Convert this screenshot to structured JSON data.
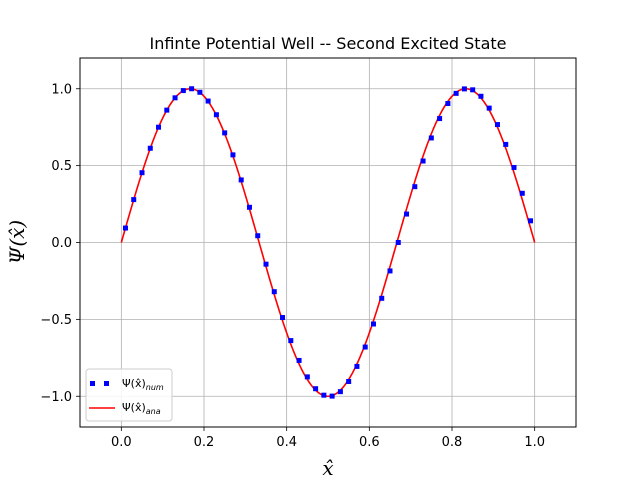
{
  "chart_data": {
    "type": "line",
    "title": "Infinte Potential Well -- Second Excited State",
    "xlabel": "x̂",
    "ylabel": "Ψ(x̂)",
    "xlim": [
      -0.1,
      1.1
    ],
    "ylim": [
      -1.2,
      1.2
    ],
    "xticks": [
      0.0,
      0.2,
      0.4,
      0.6,
      0.8,
      1.0
    ],
    "xtick_labels": [
      "0.0",
      "0.2",
      "0.4",
      "0.6",
      "0.8",
      "1.0"
    ],
    "yticks": [
      -1.0,
      -0.5,
      0.0,
      0.5,
      1.0
    ],
    "ytick_labels": [
      "−1.0",
      "−0.5",
      "0.0",
      "0.5",
      "1.0"
    ],
    "grid": true,
    "legend_position": "lower-left",
    "series": [
      {
        "name": "Ψ(x̂)num",
        "label_main": "Ψ(x̂)",
        "label_sub": "num",
        "style": "dotted-square-markers",
        "color": "#0000ff",
        "x": [
          0.01,
          0.03,
          0.05,
          0.07,
          0.09,
          0.11,
          0.13,
          0.15,
          0.17,
          0.19,
          0.21,
          0.23,
          0.25,
          0.27,
          0.29,
          0.31,
          0.33,
          0.35,
          0.37,
          0.39,
          0.41,
          0.43,
          0.45,
          0.47,
          0.49,
          0.51,
          0.53,
          0.55,
          0.57,
          0.59,
          0.61,
          0.63,
          0.65,
          0.67,
          0.69,
          0.71,
          0.73,
          0.75,
          0.77,
          0.79,
          0.81,
          0.83,
          0.85,
          0.87,
          0.89,
          0.91,
          0.93,
          0.95,
          0.97,
          0.99
        ],
        "y": [
          0.094,
          0.279,
          0.454,
          0.613,
          0.75,
          0.861,
          0.941,
          0.988,
          1.0,
          0.977,
          0.92,
          0.831,
          0.713,
          0.57,
          0.407,
          0.229,
          0.044,
          -0.141,
          -0.32,
          -0.488,
          -0.638,
          -0.767,
          -0.874,
          -0.951,
          -0.993,
          -0.999,
          -0.97,
          -0.904,
          -0.806,
          -0.68,
          -0.53,
          -0.363,
          -0.185,
          0.0,
          0.185,
          0.363,
          0.53,
          0.68,
          0.806,
          0.904,
          0.97,
          0.999,
          0.993,
          0.951,
          0.874,
          0.767,
          0.638,
          0.488,
          0.32,
          0.141
        ]
      },
      {
        "name": "Ψ(x̂)ana",
        "label_main": "Ψ(x̂)",
        "label_sub": "ana",
        "style": "solid-line",
        "color": "#ff0000",
        "function": "sin(3*pi*x)",
        "x_range": [
          0.0,
          1.0
        ]
      }
    ]
  }
}
